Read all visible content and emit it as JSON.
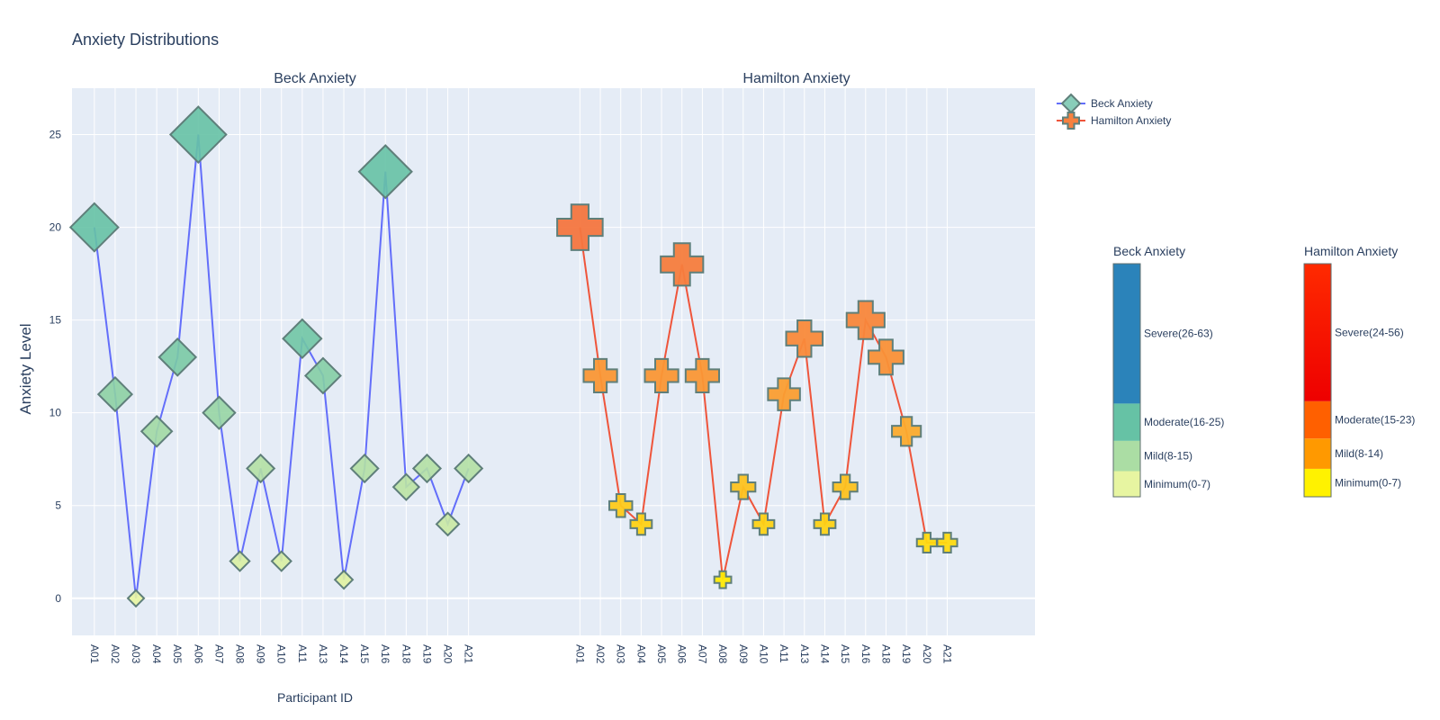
{
  "chart_data": {
    "title": "Anxiety Distributions",
    "type": "line",
    "ylabel": "Anxiety Level",
    "ylim": [
      -2,
      27.5
    ],
    "yticks": [
      0,
      5,
      10,
      15,
      20,
      25
    ],
    "grid": true,
    "legend_position": "top-right",
    "categories": [
      "A01",
      "A02",
      "A03",
      "A04",
      "A05",
      "A06",
      "A07",
      "A08",
      "A09",
      "A10",
      "A11",
      "A13",
      "A14",
      "A15",
      "A16",
      "A18",
      "A19",
      "A20",
      "A21"
    ],
    "subplots": [
      {
        "title": "Beck Anxiety",
        "xlabel": "Participant ID",
        "series": {
          "name": "Beck Anxiety",
          "marker": "diamond",
          "line_color": "#636efa",
          "values": [
            20,
            11,
            0,
            9,
            13,
            25,
            10,
            2,
            7,
            2,
            14,
            12,
            1,
            7,
            23,
            6,
            7,
            4,
            7
          ]
        }
      },
      {
        "title": "Hamilton Anxiety",
        "xlabel": "",
        "series": {
          "name": "Hamilton Anxiety",
          "marker": "cross",
          "line_color": "#ef553b",
          "values": [
            20,
            12,
            5,
            4,
            12,
            18,
            12,
            1,
            6,
            4,
            11,
            14,
            4,
            6,
            15,
            13,
            9,
            3,
            3
          ]
        }
      }
    ],
    "colorbars": [
      {
        "title": "Beck Anxiety",
        "bands": [
          {
            "label": "Minimum(0-7)",
            "min": 0,
            "max": 7,
            "color": "#e7f5a1"
          },
          {
            "label": "Mild(8-15)",
            "min": 8,
            "max": 15,
            "color": "#abdda4"
          },
          {
            "label": "Moderate(16-25)",
            "min": 16,
            "max": 25,
            "color": "#66c2a5"
          },
          {
            "label": "Severe(26-63)",
            "min": 26,
            "max": 63,
            "color": "#2b83ba"
          }
        ]
      },
      {
        "title": "Hamilton Anxiety",
        "bands": [
          {
            "label": "Minimum(0-7)",
            "min": 0,
            "max": 7,
            "color": "#fff200"
          },
          {
            "label": "Mild(8-14)",
            "min": 8,
            "max": 14,
            "color": "#ff9900"
          },
          {
            "label": "Moderate(15-23)",
            "min": 15,
            "max": 23,
            "color": "#ff6000"
          },
          {
            "label": "Severe(24-56)",
            "min": 24,
            "max": 56,
            "color_top": "#ff2a00",
            "color_bottom": "#ee0000"
          }
        ]
      }
    ]
  }
}
